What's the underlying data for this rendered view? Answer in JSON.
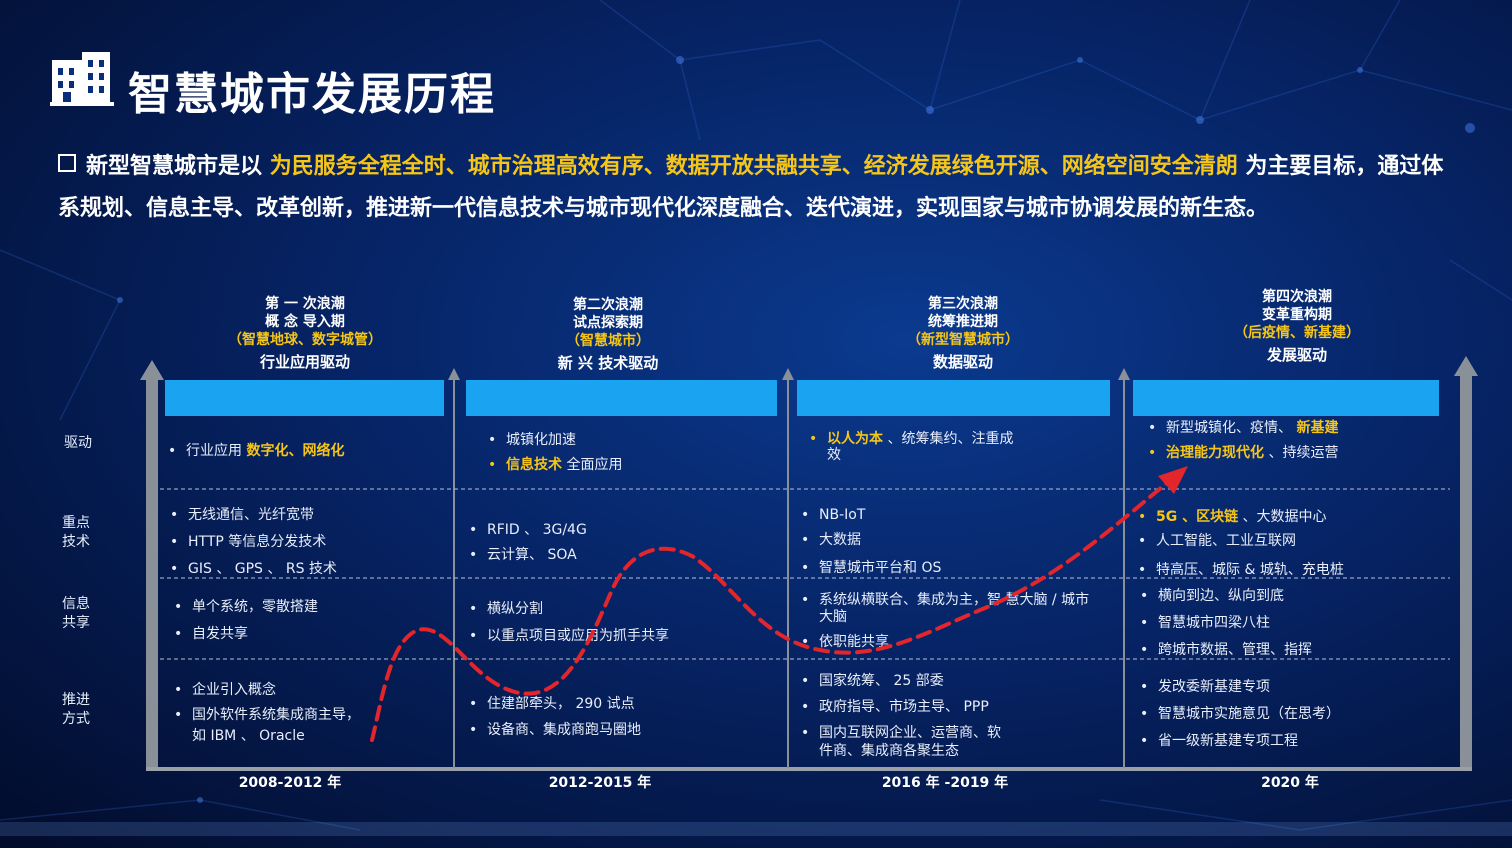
{
  "title": "智慧城市发展历程",
  "intro": {
    "prefix": "新型智慧城市是以",
    "highlight": "为民服务全程全时、城市治理高效有序、数据开放共融共享、经济发展绿色开源、网络空间安全清朗",
    "suffix": "为主要目标，通过体系规划、信息主导、改革创新，推进新一代信息技术与城市现代化深度融合、迭代演进，实现国家与城市协调发展的新生态。"
  },
  "row_labels": [
    {
      "l1": "驱动",
      "l2": ""
    },
    {
      "l1": "重点",
      "l2": "技术"
    },
    {
      "l1": "信息",
      "l2": "共享"
    },
    {
      "l1": "推进",
      "l2": "方式"
    }
  ],
  "waves": [
    {
      "line1": "第 一 次浪潮",
      "line2": "概 念 导入期",
      "line3": "（智慧地球、数字城管）",
      "line4": "行业应用驱动",
      "year": "2008-2012 年",
      "drive": [
        {
          "pre": "行业应用 ",
          "hl": "数字化、网络化",
          "post": ""
        }
      ],
      "tech": [
        "无线通信、光纤宽带",
        "HTTP 等信息分发技术",
        "GIS 、 GPS 、 RS 技术"
      ],
      "share": [
        "单个系统，零散搭建",
        "自发共享"
      ],
      "push": [
        "企业引入概念",
        "国外软件系统集成商主导，",
        "如 IBM 、 Oracle"
      ]
    },
    {
      "line1": "第二次浪潮",
      "line2": "试点探索期",
      "line3": "（智慧城市）",
      "line4": "新 兴 技术驱动",
      "year": "2012-2015 年",
      "drive": [
        {
          "pre": "城镇化加速",
          "hl": "",
          "post": ""
        },
        {
          "pre": "",
          "hl": "信息技术",
          "post": " 全面应用"
        }
      ],
      "tech": [
        "RFID 、 3G/4G",
        "云计算、 SOA"
      ],
      "share": [
        "横纵分割",
        "以重点项目或应用为抓手共享"
      ],
      "push": [
        "住建部牵头， 290 试点",
        "设备商、集成商跑马圈地"
      ]
    },
    {
      "line1": "第三次浪潮",
      "line2": "统筹推进期",
      "line3": "（新型智慧城市）",
      "line4": "数据驱动",
      "year": "2016 年 -2019 年",
      "drive": [
        {
          "pre": "",
          "hl": "以人为本",
          "post": " 、统筹集约、注重成"
        },
        {
          "pre": "效",
          "hl": "",
          "post": ""
        }
      ],
      "tech": [
        "NB-IoT",
        "大数据",
        "智慧城市平台和 OS"
      ],
      "share": [
        "系统纵横联合、集成为主，智 慧大脑 / 城市",
        "大脑",
        "依职能共享"
      ],
      "push": [
        "国家统筹、 25 部委",
        "政府指导、市场主导、 PPP",
        "国内互联网企业、运营商、软",
        "件商、集成商各聚生态"
      ]
    },
    {
      "line1": "第四次浪潮",
      "line2": "变革重构期",
      "line3": "（后疫情、新基建）",
      "line4": "发展驱动",
      "year": "2020 年",
      "drive": [
        {
          "pre": "新型城镇化、疫情、 ",
          "hl": "新基建",
          "post": ""
        },
        {
          "pre": "",
          "hl": "治理能力现代化",
          "post": " 、持续运营"
        }
      ],
      "tech": [
        "5G 、区块链",
        "人工智能、工业互联网",
        "特高压、城际 & 城轨、充电桩"
      ],
      "share": [
        "横向到边、纵向到底",
        "智慧城市四梁八柱",
        "跨城市数据、管理、指挥"
      ],
      "push": [
        "发改委新基建专项",
        "智慧城市实施意见（在思考）",
        "省一级新基建专项工程"
      ]
    }
  ],
  "tech4_post": " 、大数据中心",
  "colors": {
    "accent": "#f5c518",
    "bar": "#1aa3f0",
    "curve": "#e3262b"
  }
}
